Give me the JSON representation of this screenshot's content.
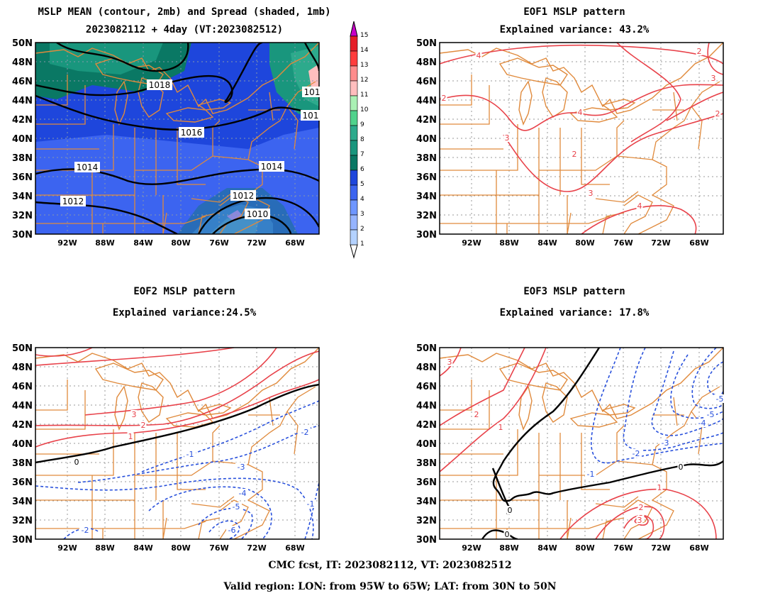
{
  "panels": [
    {
      "id": "mean-spread",
      "title_line1": "MSLP MEAN (contour, 2mb) and Spread (shaded, 1mb)",
      "title_line2": "2023082112 + 4day (VT:2023082512)",
      "contour_labels": [
        "1018",
        "1016",
        "1014",
        "1014",
        "1012",
        "1012",
        "1010",
        "101",
        "101"
      ]
    },
    {
      "id": "eof1",
      "title_line1": "EOF1 MSLP pattern",
      "title_line2": "Explained variance: 43.2%",
      "contour_labels": [
        "4",
        "4",
        "3",
        "3",
        "4",
        "2",
        "2",
        "2",
        "3",
        "2"
      ]
    },
    {
      "id": "eof2",
      "title_line1": "EOF2 MSLP pattern",
      "title_line2": "Explained variance:24.5%",
      "contour_labels": [
        "0",
        "1",
        "2",
        "3",
        "-1",
        "-2",
        "-2",
        "-3",
        "-4",
        "-5",
        "-6",
        "-1"
      ]
    },
    {
      "id": "eof3",
      "title_line1": "EOF3 MSLP pattern",
      "title_line2": "Explained variance: 17.8%",
      "contour_labels": [
        "3",
        "2",
        "1",
        "0",
        "0",
        "0",
        "-1",
        "-2",
        "-3",
        "-4",
        "-5",
        "-5",
        "1",
        "2",
        "3",
        "3"
      ]
    }
  ],
  "axes": {
    "lat_labels": [
      "50N",
      "48N",
      "46N",
      "44N",
      "42N",
      "40N",
      "38N",
      "36N",
      "34N",
      "32N",
      "30N"
    ],
    "lon_labels": [
      "92W",
      "88W",
      "84W",
      "80W",
      "76W",
      "72W",
      "68W"
    ]
  },
  "colorbar": {
    "labels": [
      "1",
      "2",
      "3",
      "4",
      "5",
      "6",
      "7",
      "8",
      "9",
      "10",
      "11",
      "12",
      "13",
      "14",
      "15"
    ],
    "colors": [
      "#b4d2ff",
      "#96b4ff",
      "#6e96ff",
      "#3c64f0",
      "#1e46dc",
      "#0a7864",
      "#19967d",
      "#2daa8c",
      "#50d28c",
      "#aaf0b4",
      "#ffbebe",
      "#ff8c8c",
      "#ff3c3c",
      "#e61e28",
      "#c800c8"
    ]
  },
  "colors": {
    "positive_contour": "#e8424a",
    "negative_contour": "#2850dc",
    "zero_contour": "#000000",
    "map_lines": "#e08a3c",
    "mean_contour": "#000000"
  },
  "footer": {
    "line1": "CMC fcst, IT: 2023082112, VT: 2023082512",
    "line2": "Valid region: LON: from 95W to 65W; LAT: from 30N to 50N"
  }
}
